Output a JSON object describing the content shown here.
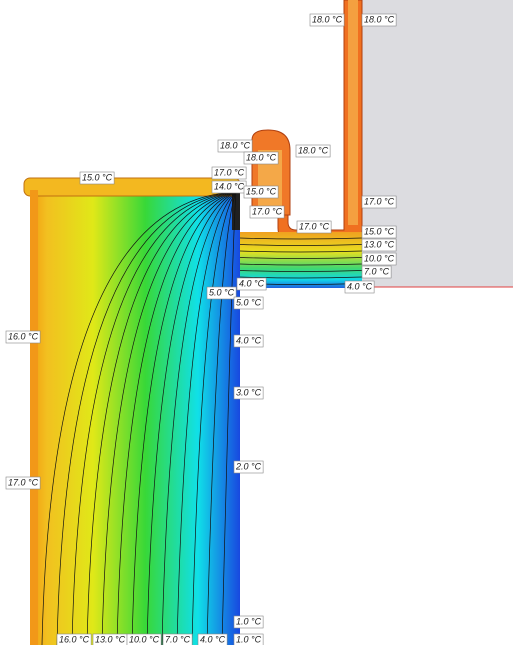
{
  "labels": [
    "18.0 °C",
    "18.0 °C",
    "18.0 °C",
    "18.0 °C",
    "18.0 °C",
    "17.0 °C",
    "15.0 °C",
    "14.0 °C",
    "15.0 °C",
    "17.0 °C",
    "17.0 °C",
    "17.0 °C",
    "15.0 °C",
    "13.0 °C",
    "10.0 °C",
    "7.0 °C",
    "4.0 °C",
    "5.0 °C",
    "4.0 °C",
    "5.0 °C",
    "16.0 °C",
    "4.0 °C",
    "3.0 °C",
    "2.0 °C",
    "17.0 °C",
    "1.0 °C",
    "16.0 °C",
    "13.0 °C",
    "10.0 °C",
    "7.0 °C",
    "4.0 °C",
    "1.0 °C"
  ]
}
